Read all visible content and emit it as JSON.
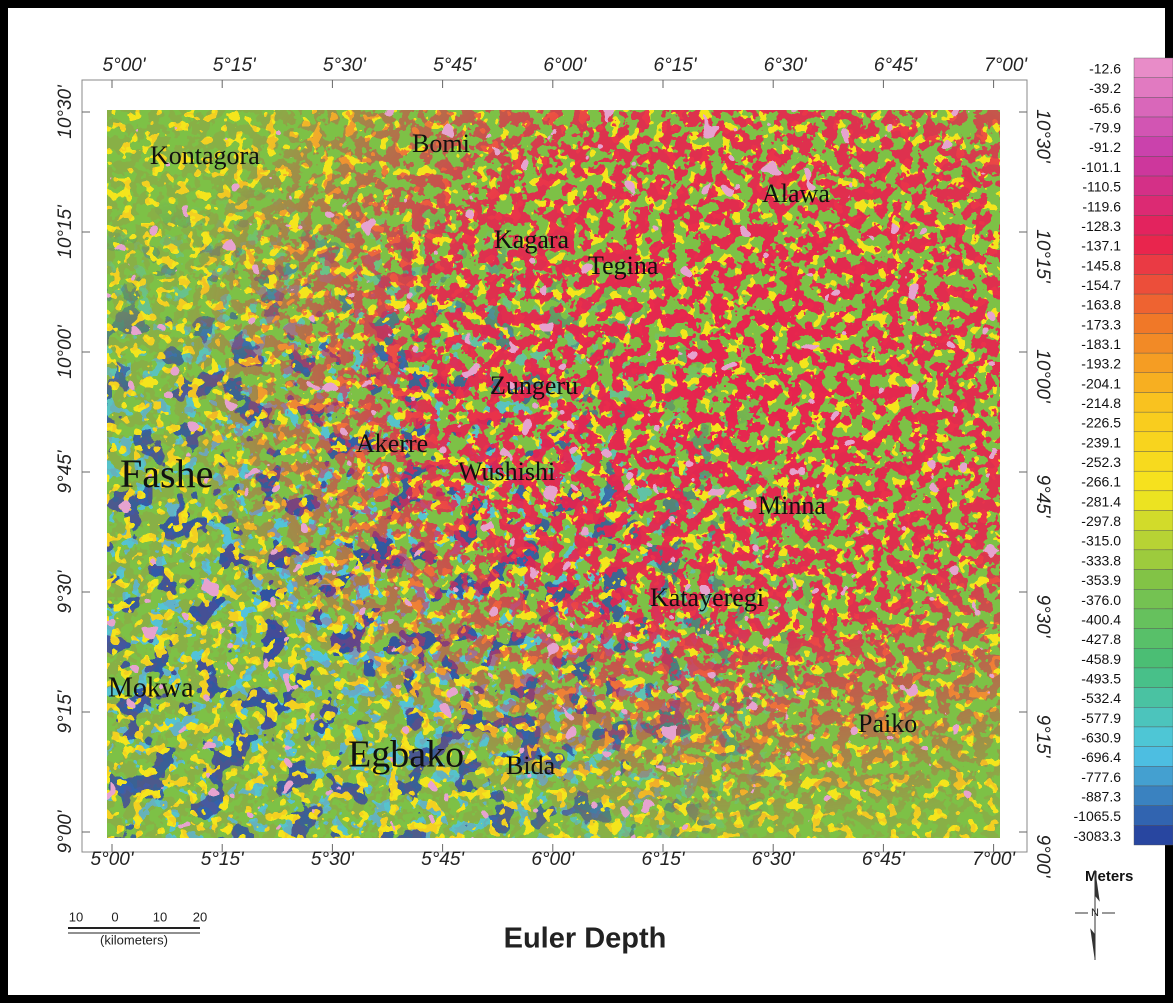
{
  "map": {
    "title": "Euler Depth",
    "top_labels": [
      "5°00'",
      "5°15'",
      "5°30'",
      "5°45'",
      "6°00'",
      "6°15'",
      "6°30'",
      "6°45'",
      "7°00'"
    ],
    "bottom_labels": [
      "5°00'",
      "5°15'",
      "5°30'",
      "5°45'",
      "6°00'",
      "6°15'",
      "6°30'",
      "6°45'",
      "7°00'"
    ],
    "left_labels": [
      "10°30'",
      "10°15'",
      "10°00'",
      "9°45'",
      "9°30'",
      "9°15'",
      "9°00'"
    ],
    "right_labels": [
      "10°30'",
      "10°15'",
      "10°00'",
      "9°45'",
      "9°30'",
      "9°15'",
      "9°00'"
    ],
    "places": [
      "Kontagora",
      "Bomi",
      "Alawa",
      "Kagara",
      "Tegina",
      "Zungeru",
      "Akerre",
      "Wushishi",
      "Fashe",
      "Minna",
      "Katayeregi",
      "Mokwa",
      "Egbako",
      "Bida",
      "Paiko"
    ],
    "legend": {
      "labels": [
        "-12.6",
        "-39.2",
        "-65.6",
        "-79.9",
        "-91.2",
        "-101.1",
        "-110.5",
        "-119.6",
        "-128.3",
        "-137.1",
        "-145.8",
        "-154.7",
        "-163.8",
        "-173.3",
        "-183.1",
        "-193.2",
        "-204.1",
        "-214.8",
        "-226.5",
        "-239.1",
        "-252.3",
        "-266.1",
        "-281.4",
        "-297.8",
        "-315.0",
        "-333.8",
        "-353.9",
        "-376.0",
        "-400.4",
        "-427.8",
        "-458.9",
        "-493.5",
        "-532.4",
        "-577.9",
        "-630.9",
        "-696.4",
        "-777.6",
        "-887.3",
        "-1065.5",
        "-3083.3"
      ],
      "unit": "Meters"
    },
    "scale_bar": {
      "labels": [
        "10",
        "0",
        "10",
        "20"
      ],
      "unit": "(kilometers)"
    },
    "north_label": "N"
  }
}
